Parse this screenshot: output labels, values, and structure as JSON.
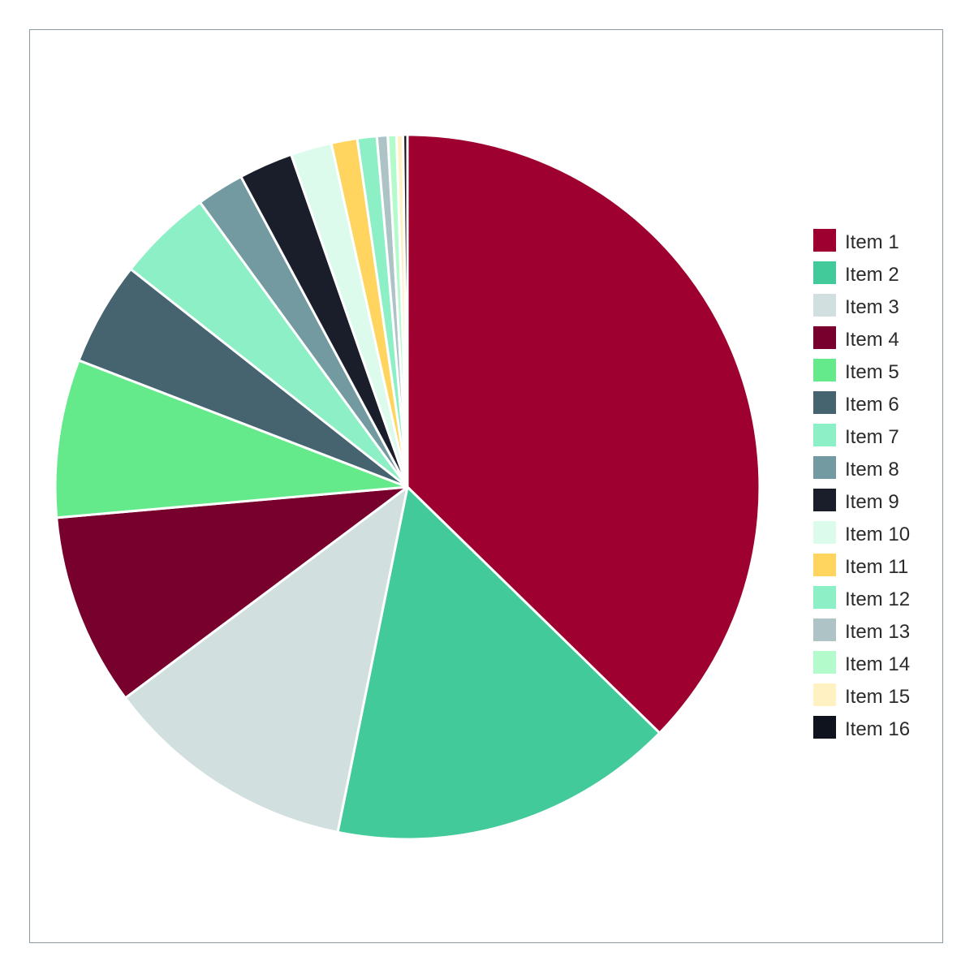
{
  "chart_data": {
    "type": "pie",
    "title": "",
    "legend_position": "right",
    "start_angle": "12 o'clock",
    "direction": "clockwise",
    "slices": [
      {
        "label": "Item 1",
        "value": 37.6,
        "color": "#9e0030"
      },
      {
        "label": "Item 2",
        "value": 16.0,
        "color": "#43ca9a"
      },
      {
        "label": "Item 3",
        "value": 11.7,
        "color": "#d2dfdf"
      },
      {
        "label": "Item 4",
        "value": 8.9,
        "color": "#77002c"
      },
      {
        "label": "Item 5",
        "value": 7.3,
        "color": "#64ea8a"
      },
      {
        "label": "Item 6",
        "value": 4.8,
        "color": "#466470"
      },
      {
        "label": "Item 7",
        "value": 4.4,
        "color": "#8cefc6"
      },
      {
        "label": "Item 8",
        "value": 2.2,
        "color": "#749aa1"
      },
      {
        "label": "Item 9",
        "value": 2.5,
        "color": "#1a1e2b"
      },
      {
        "label": "Item 10",
        "value": 1.9,
        "color": "#dcfbed"
      },
      {
        "label": "Item 11",
        "value": 1.2,
        "color": "#ffd560"
      },
      {
        "label": "Item 12",
        "value": 0.9,
        "color": "#8cefc6"
      },
      {
        "label": "Item 13",
        "value": 0.5,
        "color": "#aec3c5"
      },
      {
        "label": "Item 14",
        "value": 0.4,
        "color": "#b4fbcc"
      },
      {
        "label": "Item 15",
        "value": 0.3,
        "color": "#fff1c2"
      },
      {
        "label": "Item 16",
        "value": 0.2,
        "color": "#0e131d"
      }
    ]
  }
}
